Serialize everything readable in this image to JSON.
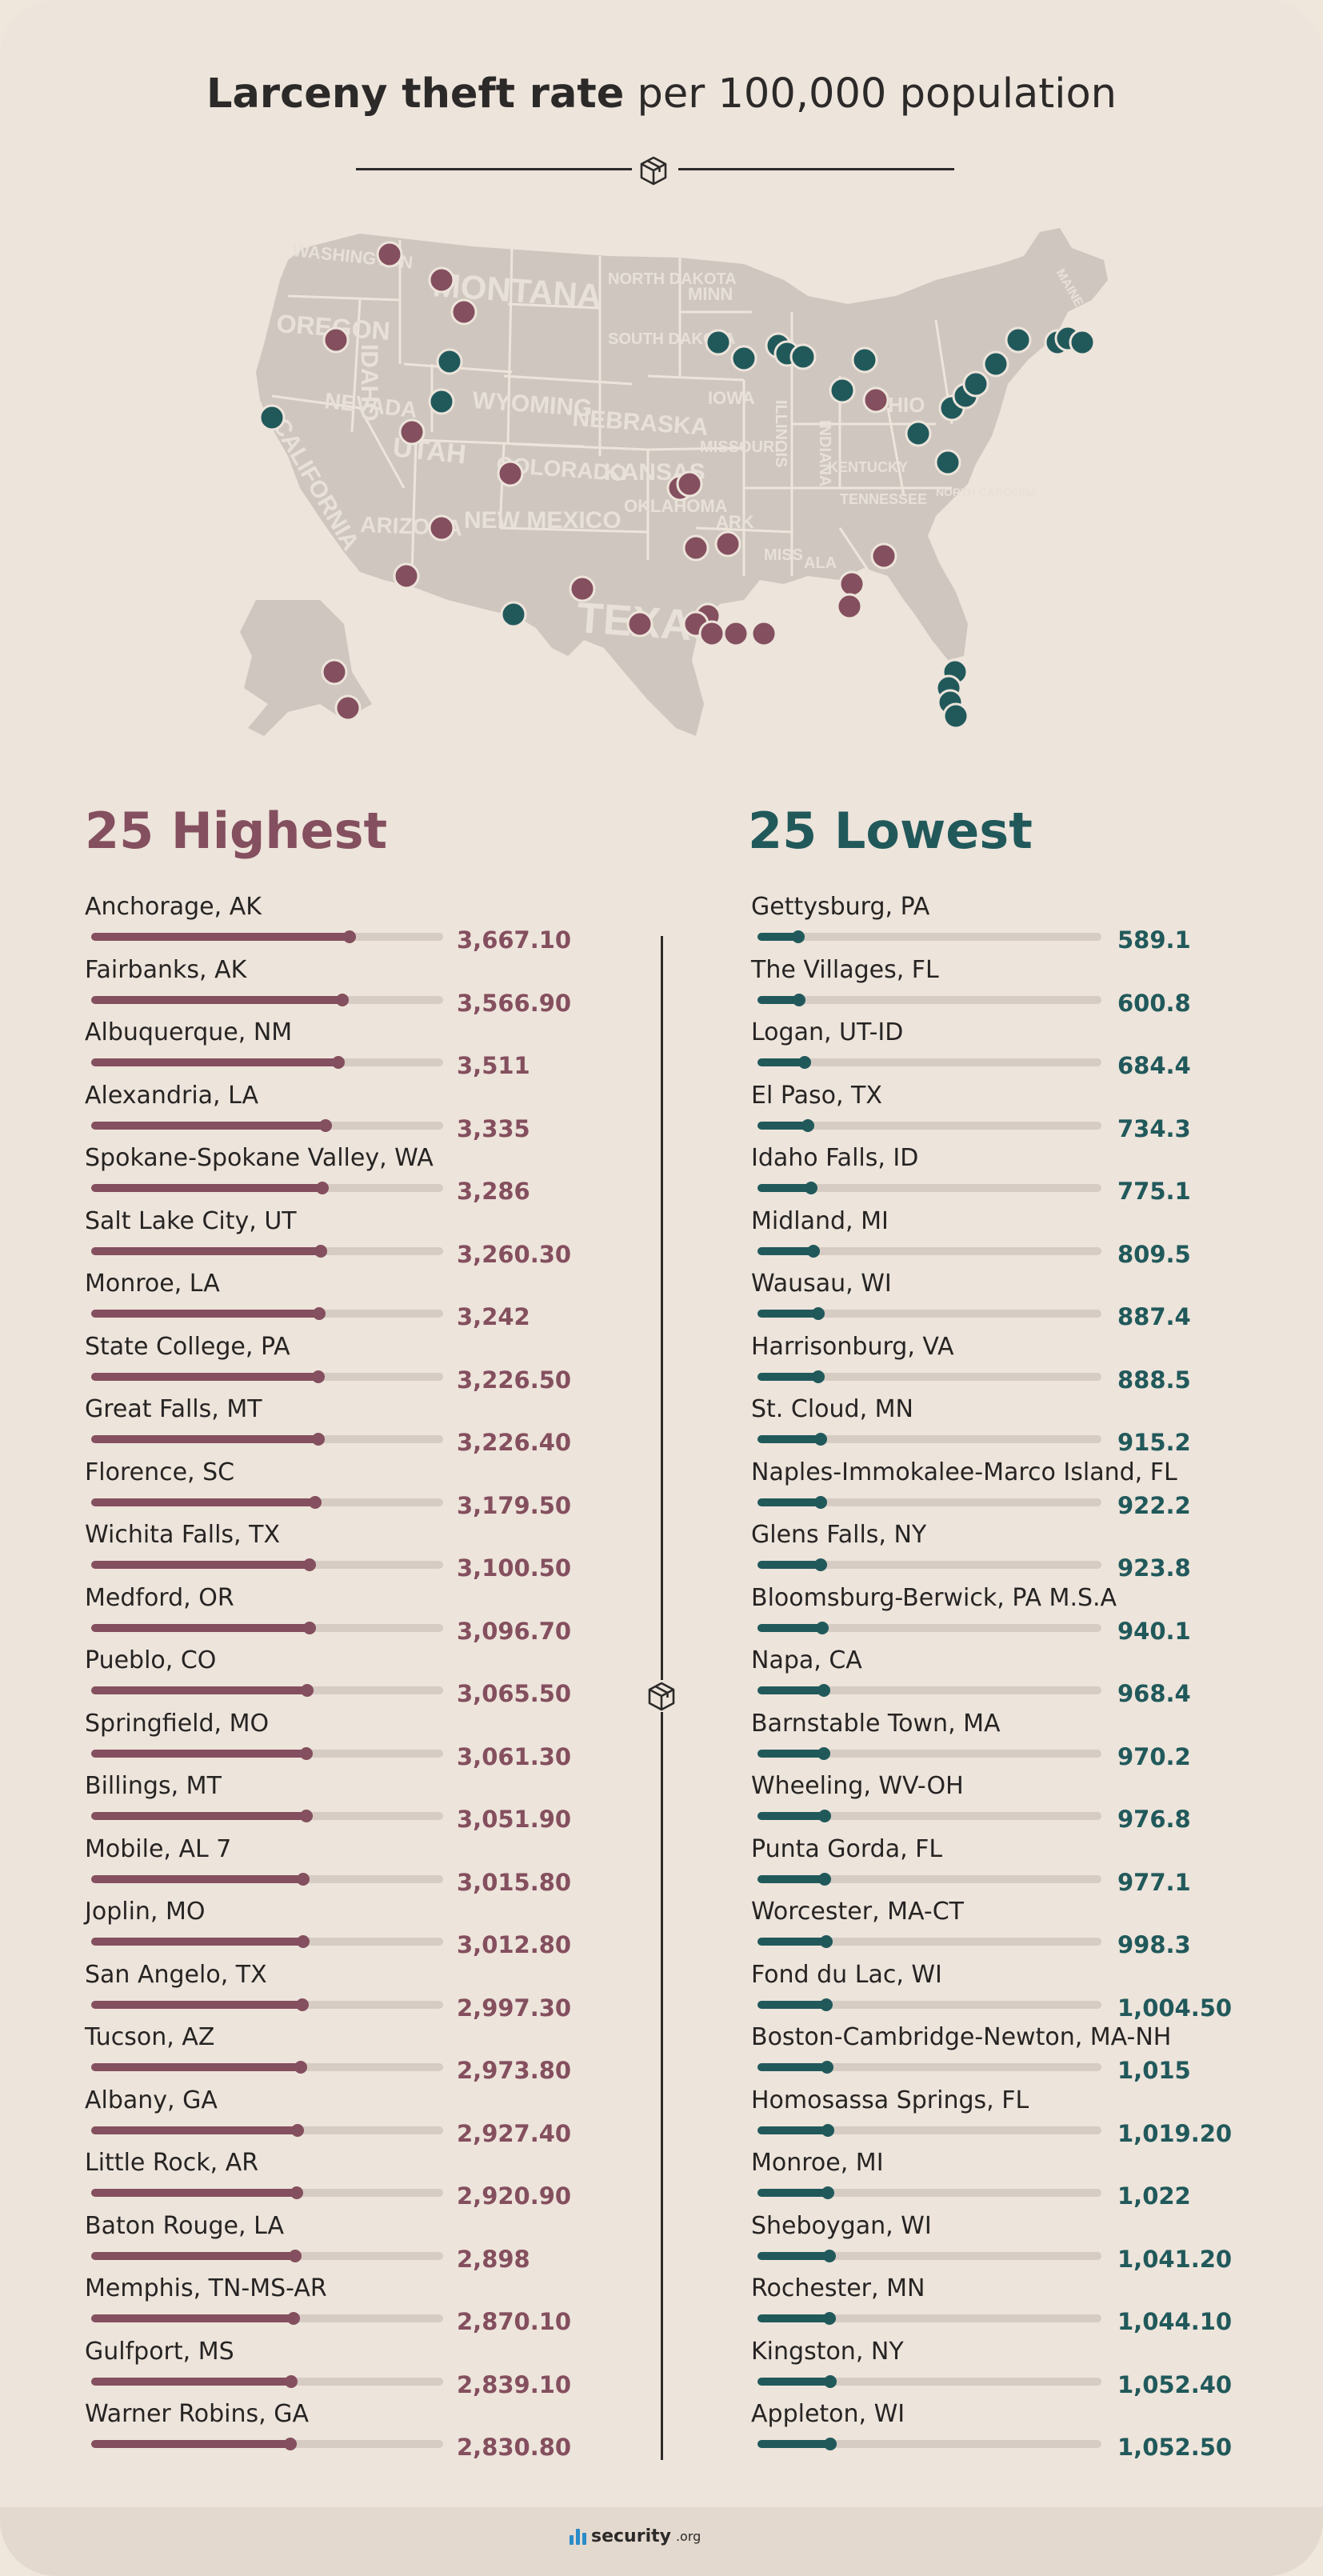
{
  "chart_data": [
    {
      "type": "bar",
      "title": "Larceny theft rate per 100,000 population",
      "title_bold": "Larceny theft rate",
      "title_rest": "per 100,000 population",
      "subtitle": "25 Highest",
      "color": "#844f5e",
      "categories": [
        "Anchorage, AK",
        "Fairbanks, AK",
        "Albuquerque, NM",
        "Alexandria, LA",
        "Spokane-Spokane Valley, WA",
        "Salt Lake City, UT",
        "Monroe, LA",
        "State College, PA",
        "Great Falls, MT",
        "Florence, SC",
        "Wichita Falls, TX",
        "Medford, OR",
        "Pueblo, CO",
        "Springfield, MO",
        "Billings, MT",
        "Mobile, AL 7",
        "Joplin, MO",
        "San Angelo, TX",
        "Tucson, AZ",
        "Albany, GA",
        "Little Rock, AR",
        "Baton Rouge, LA",
        "Memphis, TN-MS-AR",
        "Gulfport, MS",
        "Warner Robins, GA"
      ],
      "values": [
        3667.1,
        3566.9,
        3511,
        3335,
        3286,
        3260.3,
        3242,
        3226.5,
        3226.4,
        3179.5,
        3100.5,
        3096.7,
        3065.5,
        3061.3,
        3051.9,
        3015.8,
        3012.8,
        2997.3,
        2973.8,
        2927.4,
        2920.9,
        2898,
        2870.1,
        2839.1,
        2830.8
      ],
      "labels": [
        "3,667.10",
        "3,566.90",
        "3,511",
        "3,335",
        "3,286",
        "3,260.30",
        "3,242",
        "3,226.50",
        "3,226.40",
        "3,179.50",
        "3,100.50",
        "3,096.70",
        "3,065.50",
        "3,061.30",
        "3,051.90",
        "3,015.80",
        "3,012.80",
        "2,997.30",
        "2,973.80",
        "2,927.40",
        "2,920.90",
        "2,898",
        "2,870.10",
        "2,839.10",
        "2,830.80"
      ],
      "xlim": [
        0,
        5000
      ]
    },
    {
      "type": "bar",
      "subtitle": "25 Lowest",
      "color": "#21595b",
      "categories": [
        "Gettysburg, PA",
        "The Villages, FL",
        "Logan, UT-ID",
        "El Paso, TX",
        "Idaho Falls, ID",
        "Midland, MI",
        "Wausau, WI",
        "Harrisonburg, VA",
        "St. Cloud, MN",
        "Naples-Immokalee-Marco Island, FL",
        "Glens Falls, NY",
        "Bloomsburg-Berwick, PA M.S.A",
        "Napa, CA",
        "Barnstable Town, MA",
        "Wheeling, WV-OH",
        "Punta Gorda, FL",
        "Worcester, MA-CT",
        "Fond du Lac, WI",
        "Boston-Cambridge-Newton, MA-NH",
        "Homosassa Springs, FL",
        "Monroe, MI",
        "Sheboygan, WI",
        "Rochester, MN",
        "Kingston, NY",
        "Appleton, WI"
      ],
      "values": [
        589.1,
        600.8,
        684.4,
        734.3,
        775.1,
        809.5,
        887.4,
        888.5,
        915.2,
        922.2,
        923.8,
        940.1,
        968.4,
        970.2,
        976.8,
        977.1,
        998.3,
        1004.5,
        1015,
        1019.2,
        1022,
        1041.2,
        1044.1,
        1052.4,
        1052.5
      ],
      "labels": [
        "589.1",
        "600.8",
        "684.4",
        "734.3",
        "775.1",
        "809.5",
        "887.4",
        "888.5",
        "915.2",
        "922.2",
        "923.8",
        "940.1",
        "968.4",
        "970.2",
        "976.8",
        "977.1",
        "998.3",
        "1,004.50",
        "1,015",
        "1,019.20",
        "1,022",
        "1,041.20",
        "1,044.10",
        "1,052.40",
        "1,052.50"
      ],
      "xlim": [
        0,
        5000
      ]
    }
  ],
  "map": {
    "state_labels": [
      "WASHINGTON",
      "OREGON",
      "IDAHO",
      "MONTANA",
      "NORTH DAKOTA",
      "SOUTH DAKOTA",
      "WYOMING",
      "NEBRASKA",
      "NEVADA",
      "UTAH",
      "COLORADO",
      "KANSAS",
      "CALIFORNIA",
      "ARIZONA",
      "NEW MEXICO",
      "OKLAHOMA",
      "TEXAS",
      "MINN",
      "IOWA",
      "MISSOURI",
      "ARK",
      "MISS",
      "ALA",
      "ILLINOIS",
      "INDIANA",
      "OHIO",
      "KENTUCKY",
      "TENNESSEE",
      "NORTH CAROLINA",
      "MAINE"
    ]
  },
  "colors": {
    "highest": "#844f5e",
    "lowest": "#21595b",
    "background": "#ede4db",
    "map": "#cfc7bf"
  },
  "icons": {
    "title_divider": "box-icon",
    "column_divider": "box-icon",
    "brand": "bars-logo-icon"
  },
  "footer": {
    "brand_name": "security",
    "brand_tld": ".org"
  }
}
